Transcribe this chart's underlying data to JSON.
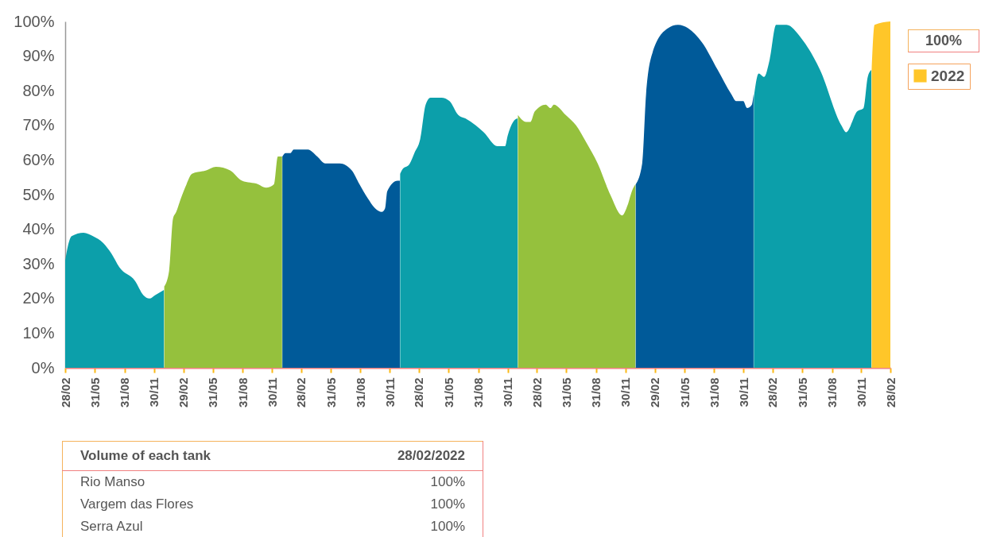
{
  "chart_data": {
    "type": "area",
    "xlim": [
      "2015-02-28",
      "2022-02-28"
    ],
    "xticks": [
      {
        "value": "2015-02-28",
        "label": "28/02"
      },
      {
        "value": "2015-05-31",
        "label": "31/05"
      },
      {
        "value": "2015-08-31",
        "label": "31/08"
      },
      {
        "value": "2015-11-30",
        "label": "30/11"
      },
      {
        "value": "2016-02-29",
        "label": "29/02"
      },
      {
        "value": "2016-05-31",
        "label": "31/05"
      },
      {
        "value": "2016-08-31",
        "label": "31/08"
      },
      {
        "value": "2016-11-30",
        "label": "30/11"
      },
      {
        "value": "2017-02-28",
        "label": "28/02"
      },
      {
        "value": "2017-05-31",
        "label": "31/05"
      },
      {
        "value": "2017-08-31",
        "label": "31/08"
      },
      {
        "value": "2017-11-30",
        "label": "30/11"
      },
      {
        "value": "2018-02-28",
        "label": "28/02"
      },
      {
        "value": "2018-05-31",
        "label": "31/05"
      },
      {
        "value": "2018-08-31",
        "label": "31/08"
      },
      {
        "value": "2018-11-30",
        "label": "30/11"
      },
      {
        "value": "2019-02-28",
        "label": "28/02"
      },
      {
        "value": "2019-05-31",
        "label": "31/05"
      },
      {
        "value": "2019-08-31",
        "label": "31/08"
      },
      {
        "value": "2019-11-30",
        "label": "30/11"
      },
      {
        "value": "2020-02-29",
        "label": "29/02"
      },
      {
        "value": "2020-05-31",
        "label": "31/05"
      },
      {
        "value": "2020-08-31",
        "label": "31/08"
      },
      {
        "value": "2020-11-30",
        "label": "30/11"
      },
      {
        "value": "2021-02-28",
        "label": "28/02"
      },
      {
        "value": "2021-05-31",
        "label": "31/05"
      },
      {
        "value": "2021-08-31",
        "label": "31/08"
      },
      {
        "value": "2021-11-30",
        "label": "30/11"
      },
      {
        "value": "2022-02-28",
        "label": "28/02"
      }
    ],
    "ylim": [
      0,
      100
    ],
    "yticks": [
      {
        "value": 0,
        "label": "0%"
      },
      {
        "value": 10,
        "label": "10%"
      },
      {
        "value": 20,
        "label": "20%"
      },
      {
        "value": 30,
        "label": "30%"
      },
      {
        "value": 40,
        "label": "40%"
      },
      {
        "value": 50,
        "label": "50%"
      },
      {
        "value": 60,
        "label": "60%"
      },
      {
        "value": 70,
        "label": "70%"
      },
      {
        "value": 80,
        "label": "80%"
      },
      {
        "value": 90,
        "label": "90%"
      },
      {
        "value": 100,
        "label": "100%"
      }
    ],
    "legend": "top right",
    "series": [
      {
        "color": "#0c9faa",
        "x": [
          "2015-02-28",
          "2015-03-08",
          "2015-03-20",
          "2015-04-26",
          "2015-05-25",
          "2015-06-26",
          "2015-07-21",
          "2015-08-15",
          "2015-10-03",
          "2015-10-28",
          "2015-11-16",
          "2015-12-04",
          "2015-12-31"
        ],
        "values": [
          31,
          35,
          38,
          39,
          38,
          36,
          33,
          29,
          25,
          21,
          20,
          21,
          22.5
        ]
      },
      {
        "color": "#95c13d",
        "x": [
          "2016-01-01",
          "2016-01-16",
          "2016-01-28",
          "2016-02-07",
          "2016-02-22",
          "2016-03-10",
          "2016-03-27",
          "2016-05-10",
          "2016-06-09",
          "2016-07-23",
          "2016-08-29",
          "2016-10-18",
          "2016-11-11",
          "2016-12-06",
          "2016-12-18",
          "2016-12-31"
        ],
        "values": [
          23.5,
          28,
          43,
          45,
          49,
          53,
          56,
          57,
          58,
          57,
          54,
          53,
          52,
          53,
          61,
          61
        ]
      },
      {
        "color": "#005a99",
        "x": [
          "2017-01-01",
          "2017-01-11",
          "2017-01-26",
          "2017-02-05",
          "2017-03-21",
          "2017-04-19",
          "2017-05-14",
          "2017-06-28",
          "2017-08-04",
          "2017-08-28",
          "2017-09-22",
          "2017-10-16",
          "2017-11-05",
          "2017-11-15",
          "2017-11-22",
          "2017-12-24",
          "2017-12-31"
        ],
        "values": [
          61,
          62,
          62,
          63,
          63,
          61,
          59,
          59,
          57,
          53,
          49,
          46,
          45,
          46,
          51,
          54,
          54
        ]
      },
      {
        "color": "#0c9faa",
        "x": [
          "2018-01-01",
          "2018-01-06",
          "2018-01-31",
          "2018-02-14",
          "2018-03-04",
          "2018-03-21",
          "2018-04-05",
          "2018-05-09",
          "2018-06-03",
          "2018-06-30",
          "2018-07-22",
          "2018-08-23",
          "2018-09-17",
          "2018-10-29",
          "2018-11-22",
          "2018-11-30",
          "2018-12-17",
          "2018-12-31"
        ],
        "values": [
          56,
          57,
          59,
          62,
          66,
          76,
          78,
          78,
          77,
          73,
          72,
          70,
          68,
          64,
          64,
          67,
          71,
          72
        ]
      },
      {
        "color": "#95c13d",
        "x": [
          "2019-01-01",
          "2019-01-26",
          "2019-02-09",
          "2019-02-22",
          "2019-03-28",
          "2019-04-12",
          "2019-04-22",
          "2019-05-29",
          "2019-06-30",
          "2019-08-01",
          "2019-09-05",
          "2019-10-14",
          "2019-11-20",
          "2019-12-07",
          "2019-12-20",
          "2019-12-31"
        ],
        "values": [
          73,
          71,
          71,
          74,
          76,
          75,
          76,
          73,
          70,
          65,
          59,
          50,
          44,
          47,
          51,
          53
        ]
      },
      {
        "color": "#005a99",
        "x": [
          "2020-01-01",
          "2020-01-21",
          "2020-02-02",
          "2020-02-22",
          "2020-04-09",
          "2020-05-11",
          "2020-06-12",
          "2020-07-24",
          "2020-09-11",
          "2020-10-23",
          "2020-11-07",
          "2020-11-29",
          "2020-12-11",
          "2020-12-26",
          "2020-12-31"
        ],
        "values": [
          53,
          59,
          79,
          91,
          98,
          99,
          98,
          94,
          86,
          79,
          77,
          77,
          75,
          76,
          79
        ]
      },
      {
        "color": "#0c9faa",
        "x": [
          "2021-01-01",
          "2021-01-16",
          "2021-02-02",
          "2021-02-19",
          "2021-03-11",
          "2021-04-12",
          "2021-05-29",
          "2021-07-25",
          "2021-09-29",
          "2021-10-14",
          "2021-11-17",
          "2021-12-07",
          "2021-12-20",
          "2021-12-31"
        ],
        "values": [
          78,
          85,
          84,
          89,
          99,
          99,
          95,
          86,
          70,
          68,
          74,
          75,
          84,
          86
        ]
      },
      {
        "name": "2022",
        "color": "#ffc629",
        "x": [
          "2022-01-01",
          "2022-01-10",
          "2022-02-28"
        ],
        "values": [
          86,
          99,
          100
        ]
      }
    ],
    "annotations": [
      "100%",
      "Volume of each tank",
      "28/02/2022",
      "Rio Manso",
      "100%",
      "Vargem das Flores",
      "100%",
      "Serra Azul",
      "100%"
    ]
  }
}
